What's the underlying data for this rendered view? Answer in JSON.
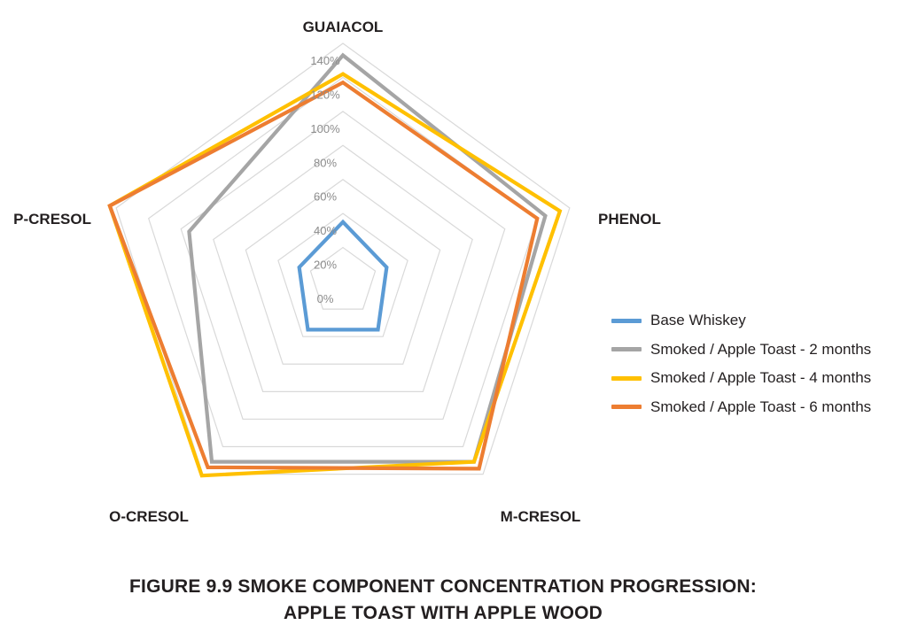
{
  "chart_data": {
    "type": "radar",
    "axes": [
      "GUAIACOL",
      "PHENOL",
      "M-CRESOL",
      "O-CRESOL",
      "P-CRESOL"
    ],
    "r_ticks": [
      "0%",
      "20%",
      "40%",
      "60%",
      "80%",
      "100%",
      "120%",
      "140%"
    ],
    "r_range": [
      0,
      140
    ],
    "grid": true,
    "legend_position": "right",
    "series": [
      {
        "name": "Base Whiskey",
        "color": "#5b9bd5",
        "values": [
          35,
          27,
          35,
          35,
          27
        ]
      },
      {
        "name": "Smoked / Apple Toast - 2 months",
        "color": "#a5a5a5",
        "values": [
          133,
          125,
          131,
          131,
          95
        ]
      },
      {
        "name": "Smoked / Apple Toast - 4 months",
        "color": "#ffc000",
        "values": [
          122,
          134,
          131,
          141,
          144
        ]
      },
      {
        "name": "Smoked / Apple Toast - 6 months",
        "color": "#ed7d31",
        "values": [
          117,
          120,
          136,
          135,
          144
        ]
      }
    ]
  },
  "caption": {
    "line1": "FIGURE 9.9  SMOKE COMPONENT CONCENTRATION PROGRESSION:",
    "line2": "APPLE TOAST WITH APPLE WOOD"
  }
}
